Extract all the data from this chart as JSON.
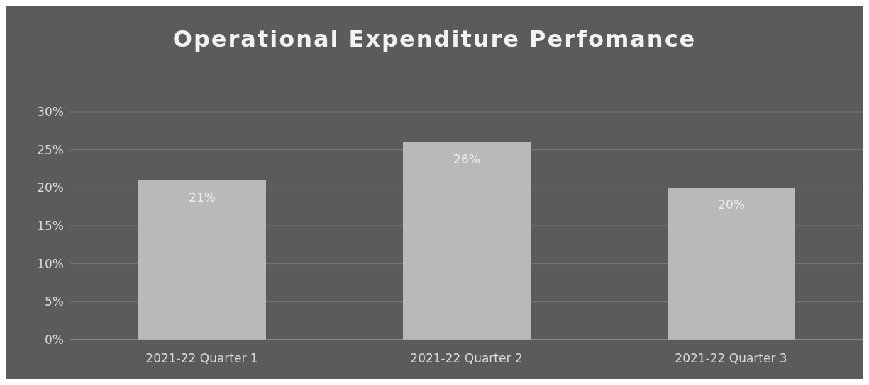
{
  "chart_data": {
    "type": "bar",
    "title": "Operational Expenditure Perfomance",
    "categories": [
      "2021-22 Quarter 1",
      "2021-22 Quarter 2",
      "2021-22 Quarter 3"
    ],
    "values": [
      21,
      26,
      20
    ],
    "value_labels": [
      "21%",
      "26%",
      "20%"
    ],
    "color": "#b9b9b9",
    "ylim": [
      0,
      30
    ],
    "yticks": [
      {
        "value": 0,
        "label": "0%"
      },
      {
        "value": 5,
        "label": "5%"
      },
      {
        "value": 10,
        "label": "10%"
      },
      {
        "value": 15,
        "label": "15%"
      },
      {
        "value": 20,
        "label": "20%"
      },
      {
        "value": 25,
        "label": "25%"
      },
      {
        "value": 30,
        "label": "30%"
      }
    ],
    "grid": "y"
  }
}
